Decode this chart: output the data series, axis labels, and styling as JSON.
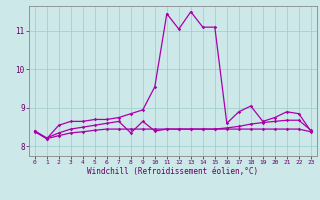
{
  "xlabel": "Windchill (Refroidissement éolien,°C)",
  "background_color": "#cce8e8",
  "line_color": "#aa00aa",
  "grid_color": "#99cccc",
  "xlim": [
    -0.5,
    23.5
  ],
  "ylim": [
    7.75,
    11.65
  ],
  "yticks": [
    8,
    9,
    10,
    11
  ],
  "xticks": [
    0,
    1,
    2,
    3,
    4,
    5,
    6,
    7,
    8,
    9,
    10,
    11,
    12,
    13,
    14,
    15,
    16,
    17,
    18,
    19,
    20,
    21,
    22,
    23
  ],
  "hours": [
    0,
    1,
    2,
    3,
    4,
    5,
    6,
    7,
    8,
    9,
    10,
    11,
    12,
    13,
    14,
    15,
    16,
    17,
    18,
    19,
    20,
    21,
    22,
    23
  ],
  "line1": [
    8.4,
    8.2,
    8.55,
    8.65,
    8.65,
    8.7,
    8.7,
    8.75,
    8.85,
    8.95,
    9.55,
    11.45,
    11.05,
    11.5,
    11.1,
    11.1,
    8.6,
    8.9,
    9.05,
    8.65,
    8.75,
    8.9,
    8.85,
    8.4
  ],
  "line2": [
    8.4,
    8.22,
    8.35,
    8.45,
    8.5,
    8.55,
    8.6,
    8.65,
    8.35,
    8.65,
    8.4,
    8.45,
    8.45,
    8.45,
    8.45,
    8.45,
    8.48,
    8.52,
    8.58,
    8.62,
    8.65,
    8.68,
    8.68,
    8.42
  ],
  "line3": [
    8.38,
    8.2,
    8.28,
    8.35,
    8.38,
    8.42,
    8.45,
    8.45,
    8.45,
    8.45,
    8.45,
    8.45,
    8.45,
    8.45,
    8.45,
    8.45,
    8.45,
    8.45,
    8.45,
    8.45,
    8.45,
    8.45,
    8.45,
    8.38
  ]
}
